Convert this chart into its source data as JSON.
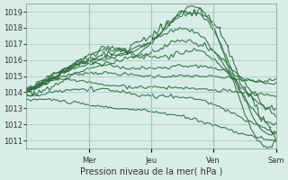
{
  "title": "",
  "xlabel": "Pression niveau de la mer( hPa )",
  "ylim": [
    1010.5,
    1019.5
  ],
  "yticks": [
    1011,
    1012,
    1013,
    1014,
    1015,
    1016,
    1017,
    1018,
    1019
  ],
  "background_color": "#d8ede8",
  "grid_color": "#a0c8b8",
  "line_color": "#2d6b3c",
  "marker_color": "#2d6b3c",
  "day_labels": [
    "Mer",
    "Jeu",
    "Ven",
    "Sam"
  ],
  "day_positions": [
    0.25,
    0.5,
    0.75,
    1.0
  ],
  "n_points": 120,
  "xlim": [
    0,
    1
  ]
}
